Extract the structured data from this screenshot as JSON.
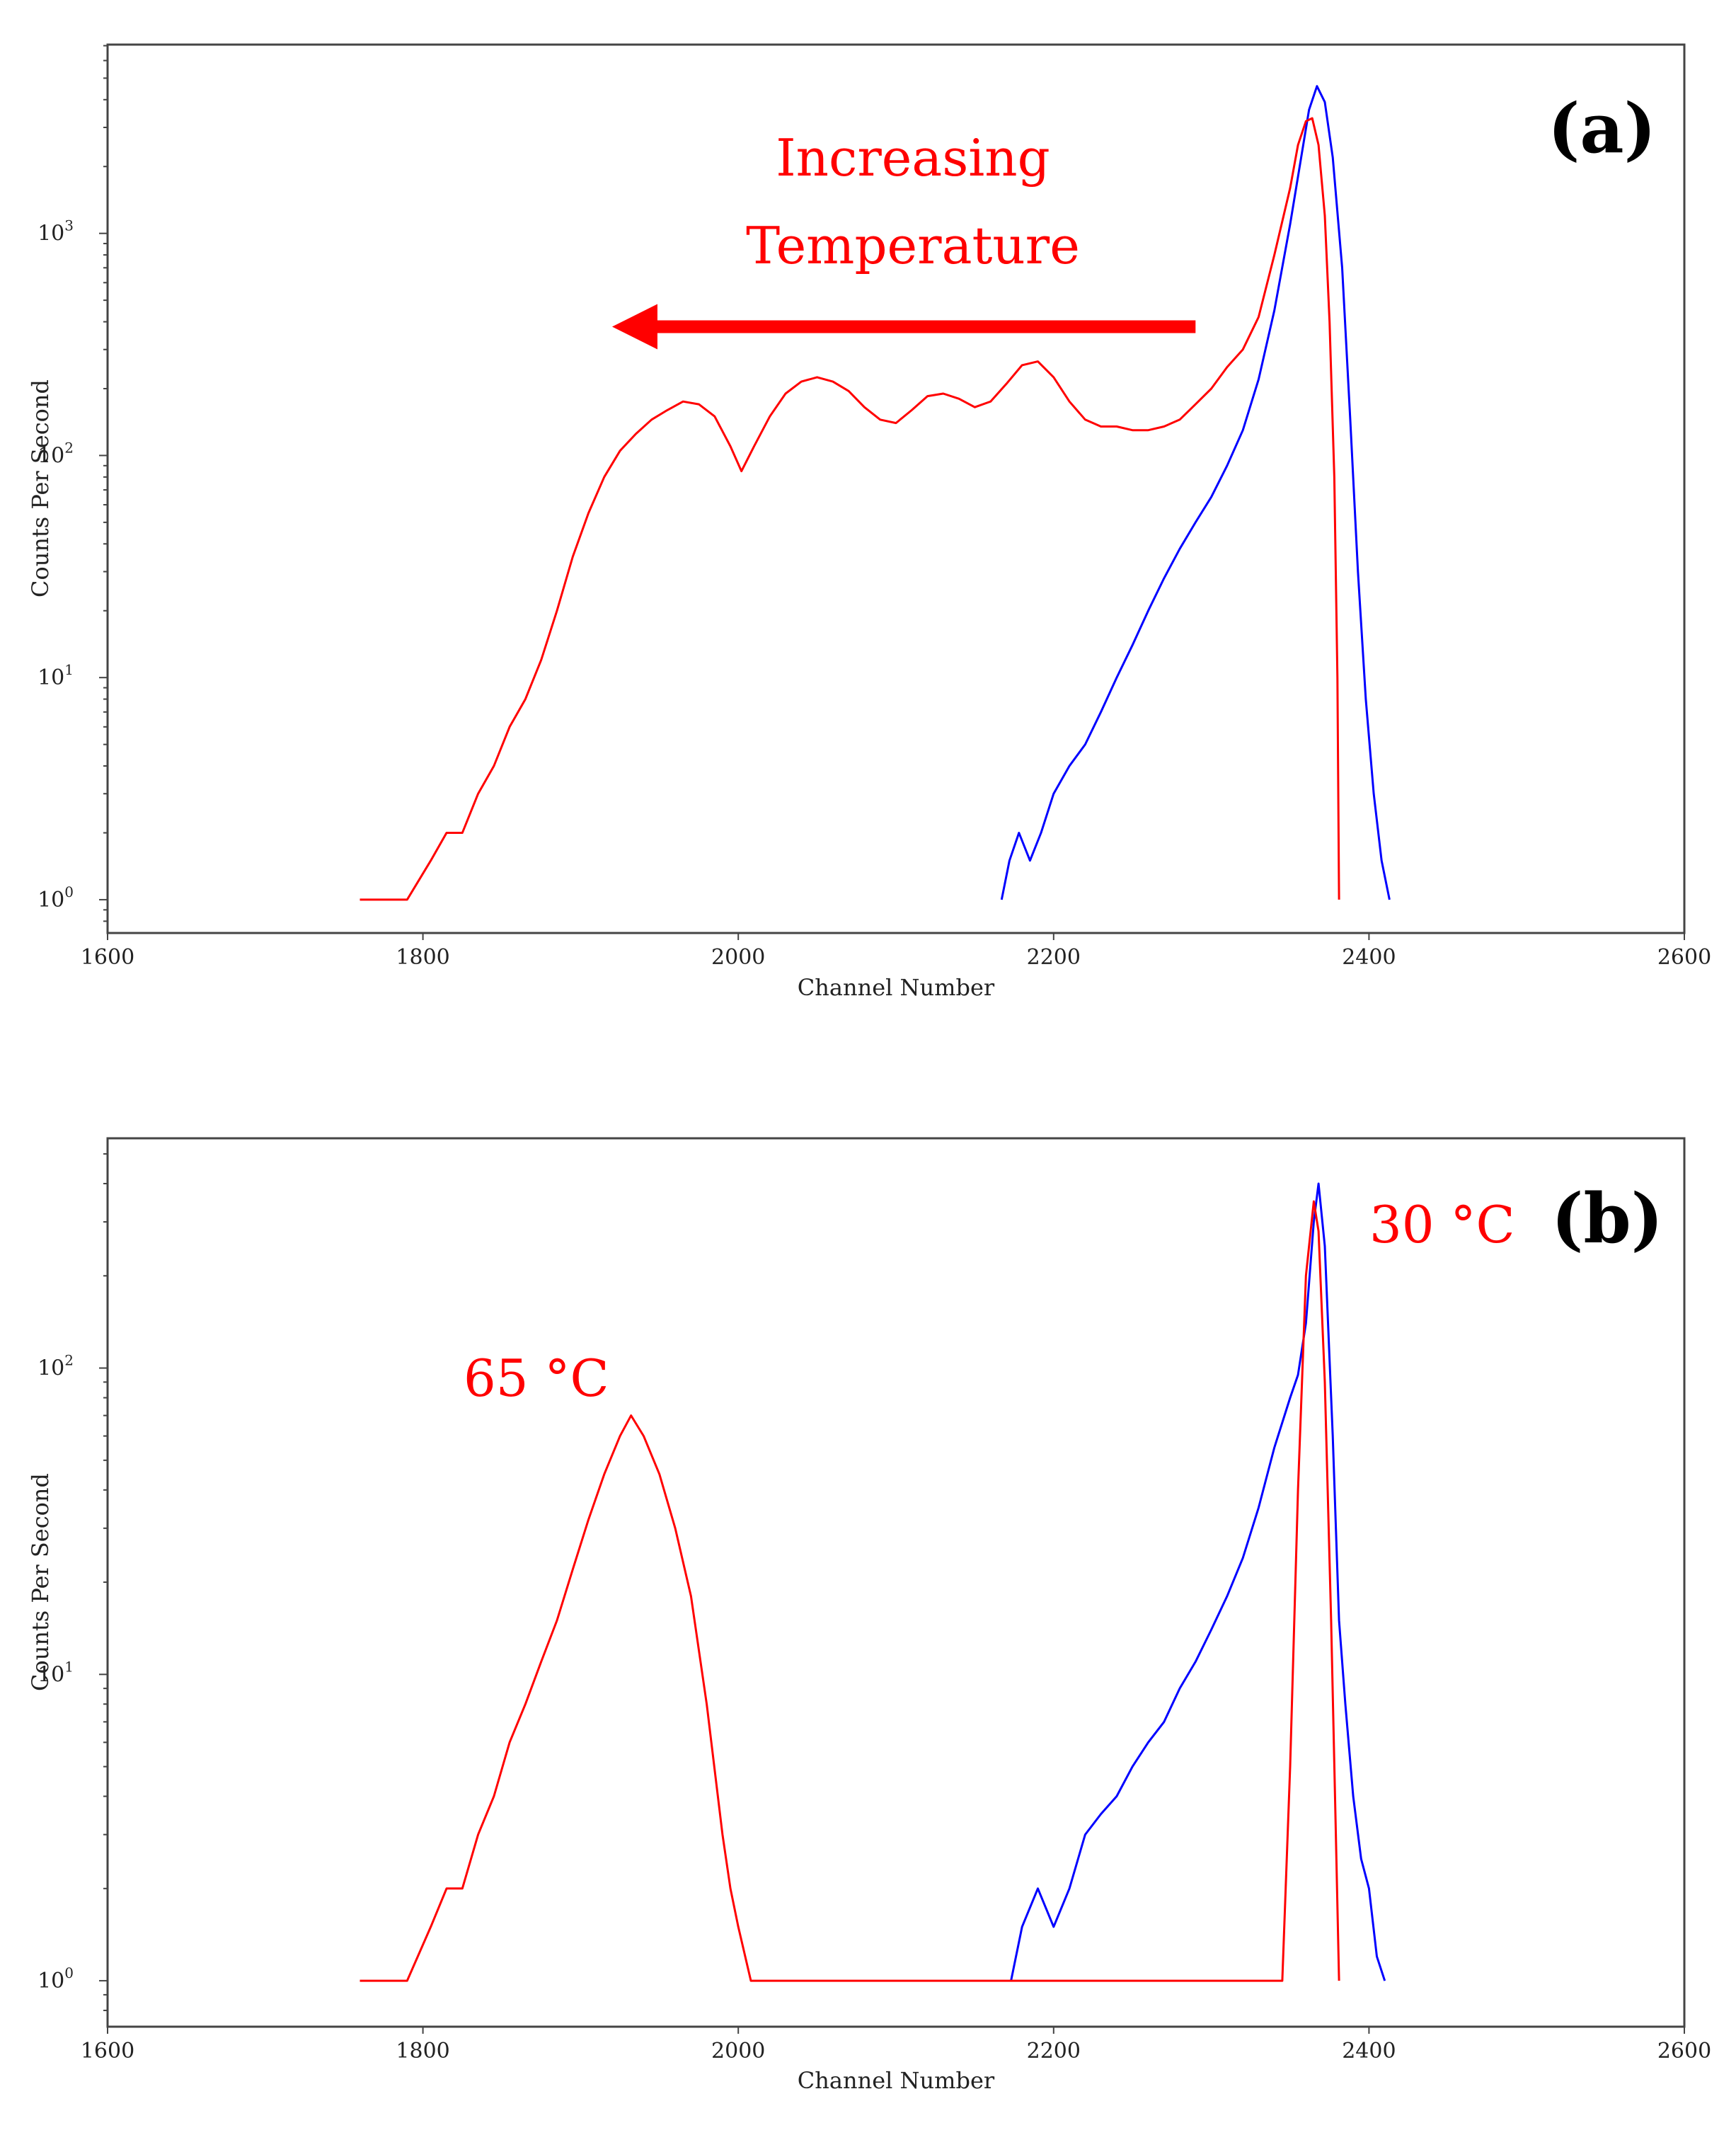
{
  "figure": {
    "colors": {
      "cold": "#0000ff",
      "hot": "#ff0000",
      "annotation": "#ff0000",
      "axes": "#444444"
    }
  },
  "chart_data": [
    {
      "id": "a",
      "type": "line",
      "panel_label": "(a)",
      "xlabel": "Channel Number",
      "ylabel": "Counts Per Second",
      "xlim": [
        1600,
        2600
      ],
      "xticks": [
        1600,
        1800,
        2000,
        2200,
        2400,
        2600
      ],
      "yscale": "log",
      "ylim_log10": [
        -0.15,
        3.85
      ],
      "yticks": [
        {
          "exp": 0,
          "base": "10",
          "sup": "0"
        },
        {
          "exp": 1,
          "base": "10",
          "sup": "1"
        },
        {
          "exp": 2,
          "base": "10",
          "sup": "2"
        },
        {
          "exp": 3,
          "base": "10",
          "sup": "3"
        }
      ],
      "annotations": {
        "line1": "Increasing",
        "line2": "Temperature",
        "arrow": {
          "from_x": 2290,
          "to_x": 1920,
          "y": 380
        }
      },
      "series": [
        {
          "name": "cold",
          "color": "#0000ff",
          "points": [
            [
              2167,
              1
            ],
            [
              2172,
              1.5
            ],
            [
              2178,
              2
            ],
            [
              2185,
              1.5
            ],
            [
              2192,
              2
            ],
            [
              2200,
              3
            ],
            [
              2210,
              4
            ],
            [
              2220,
              5
            ],
            [
              2230,
              7
            ],
            [
              2240,
              10
            ],
            [
              2250,
              14
            ],
            [
              2260,
              20
            ],
            [
              2270,
              28
            ],
            [
              2280,
              38
            ],
            [
              2290,
              50
            ],
            [
              2300,
              65
            ],
            [
              2310,
              90
            ],
            [
              2320,
              130
            ],
            [
              2330,
              220
            ],
            [
              2340,
              450
            ],
            [
              2350,
              1100
            ],
            [
              2357,
              2200
            ],
            [
              2362,
              3600
            ],
            [
              2367,
              4600
            ],
            [
              2372,
              3900
            ],
            [
              2377,
              2200
            ],
            [
              2383,
              700
            ],
            [
              2388,
              150
            ],
            [
              2393,
              30
            ],
            [
              2398,
              8
            ],
            [
              2403,
              3
            ],
            [
              2408,
              1.5
            ],
            [
              2413,
              1
            ]
          ]
        },
        {
          "name": "hot",
          "color": "#ff0000",
          "points": [
            [
              1760,
              1
            ],
            [
              1790,
              1
            ],
            [
              1805,
              1.5
            ],
            [
              1815,
              2
            ],
            [
              1825,
              2
            ],
            [
              1835,
              3
            ],
            [
              1845,
              4
            ],
            [
              1855,
              6
            ],
            [
              1865,
              8
            ],
            [
              1875,
              12
            ],
            [
              1885,
              20
            ],
            [
              1895,
              35
            ],
            [
              1905,
              55
            ],
            [
              1915,
              80
            ],
            [
              1925,
              105
            ],
            [
              1935,
              125
            ],
            [
              1945,
              145
            ],
            [
              1955,
              160
            ],
            [
              1965,
              175
            ],
            [
              1975,
              170
            ],
            [
              1985,
              150
            ],
            [
              1995,
              110
            ],
            [
              2002,
              85
            ],
            [
              2010,
              110
            ],
            [
              2020,
              150
            ],
            [
              2030,
              190
            ],
            [
              2040,
              215
            ],
            [
              2050,
              225
            ],
            [
              2060,
              215
            ],
            [
              2070,
              195
            ],
            [
              2080,
              165
            ],
            [
              2090,
              145
            ],
            [
              2100,
              140
            ],
            [
              2110,
              160
            ],
            [
              2120,
              185
            ],
            [
              2130,
              190
            ],
            [
              2140,
              180
            ],
            [
              2150,
              165
            ],
            [
              2160,
              175
            ],
            [
              2170,
              210
            ],
            [
              2180,
              255
            ],
            [
              2190,
              265
            ],
            [
              2200,
              225
            ],
            [
              2210,
              175
            ],
            [
              2220,
              145
            ],
            [
              2230,
              135
            ],
            [
              2240,
              135
            ],
            [
              2250,
              130
            ],
            [
              2260,
              130
            ],
            [
              2270,
              135
            ],
            [
              2280,
              145
            ],
            [
              2290,
              170
            ],
            [
              2300,
              200
            ],
            [
              2310,
              250
            ],
            [
              2320,
              300
            ],
            [
              2330,
              420
            ],
            [
              2340,
              800
            ],
            [
              2350,
              1600
            ],
            [
              2355,
              2500
            ],
            [
              2360,
              3200
            ],
            [
              2364,
              3300
            ],
            [
              2368,
              2500
            ],
            [
              2372,
              1200
            ],
            [
              2375,
              400
            ],
            [
              2378,
              80
            ],
            [
              2380,
              10
            ],
            [
              2381,
              1
            ]
          ]
        }
      ]
    },
    {
      "id": "b",
      "type": "line",
      "panel_label": "(b)",
      "xlabel": "Channel Number",
      "ylabel": "Counts Per Second",
      "xlim": [
        1600,
        2600
      ],
      "xticks": [
        1600,
        1800,
        2000,
        2200,
        2400,
        2600
      ],
      "yscale": "log",
      "ylim_log10": [
        -0.15,
        2.75
      ],
      "yticks": [
        {
          "exp": 0,
          "base": "10",
          "sup": "0"
        },
        {
          "exp": 1,
          "base": "10",
          "sup": "1"
        },
        {
          "exp": 2,
          "base": "10",
          "sup": "2"
        }
      ],
      "annotations": {
        "label_cold": "30 °C",
        "label_hot": "65 °C"
      },
      "series": [
        {
          "name": "cold (30 °C)",
          "color": "#0000ff",
          "points": [
            [
              2173,
              1
            ],
            [
              2180,
              1.5
            ],
            [
              2190,
              2
            ],
            [
              2200,
              1.5
            ],
            [
              2210,
              2
            ],
            [
              2220,
              3
            ],
            [
              2230,
              3.5
            ],
            [
              2240,
              4
            ],
            [
              2250,
              5
            ],
            [
              2260,
              6
            ],
            [
              2270,
              7
            ],
            [
              2280,
              9
            ],
            [
              2290,
              11
            ],
            [
              2300,
              14
            ],
            [
              2310,
              18
            ],
            [
              2320,
              24
            ],
            [
              2330,
              35
            ],
            [
              2340,
              55
            ],
            [
              2350,
              80
            ],
            [
              2355,
              95
            ],
            [
              2360,
              140
            ],
            [
              2365,
              300
            ],
            [
              2368,
              400
            ],
            [
              2372,
              250
            ],
            [
              2377,
              60
            ],
            [
              2381,
              15
            ],
            [
              2385,
              8
            ],
            [
              2390,
              4
            ],
            [
              2395,
              2.5
            ],
            [
              2400,
              2
            ],
            [
              2405,
              1.2
            ],
            [
              2410,
              1
            ]
          ]
        },
        {
          "name": "hot (65 °C)",
          "color": "#ff0000",
          "points": [
            [
              1760,
              1
            ],
            [
              1790,
              1
            ],
            [
              1805,
              1.5
            ],
            [
              1815,
              2
            ],
            [
              1825,
              2
            ],
            [
              1835,
              3
            ],
            [
              1845,
              4
            ],
            [
              1855,
              6
            ],
            [
              1865,
              8
            ],
            [
              1875,
              11
            ],
            [
              1885,
              15
            ],
            [
              1895,
              22
            ],
            [
              1905,
              32
            ],
            [
              1915,
              45
            ],
            [
              1925,
              60
            ],
            [
              1932,
              70
            ],
            [
              1940,
              60
            ],
            [
              1950,
              45
            ],
            [
              1960,
              30
            ],
            [
              1970,
              18
            ],
            [
              1980,
              8
            ],
            [
              1990,
              3
            ],
            [
              1995,
              2
            ],
            [
              2000,
              1.5
            ],
            [
              2008,
              1
            ],
            [
              2345,
              1
            ],
            [
              2350,
              5
            ],
            [
              2355,
              40
            ],
            [
              2360,
              200
            ],
            [
              2365,
              350
            ],
            [
              2368,
              280
            ],
            [
              2372,
              90
            ],
            [
              2376,
              15
            ],
            [
              2379,
              3
            ],
            [
              2381,
              1
            ]
          ]
        }
      ]
    }
  ]
}
